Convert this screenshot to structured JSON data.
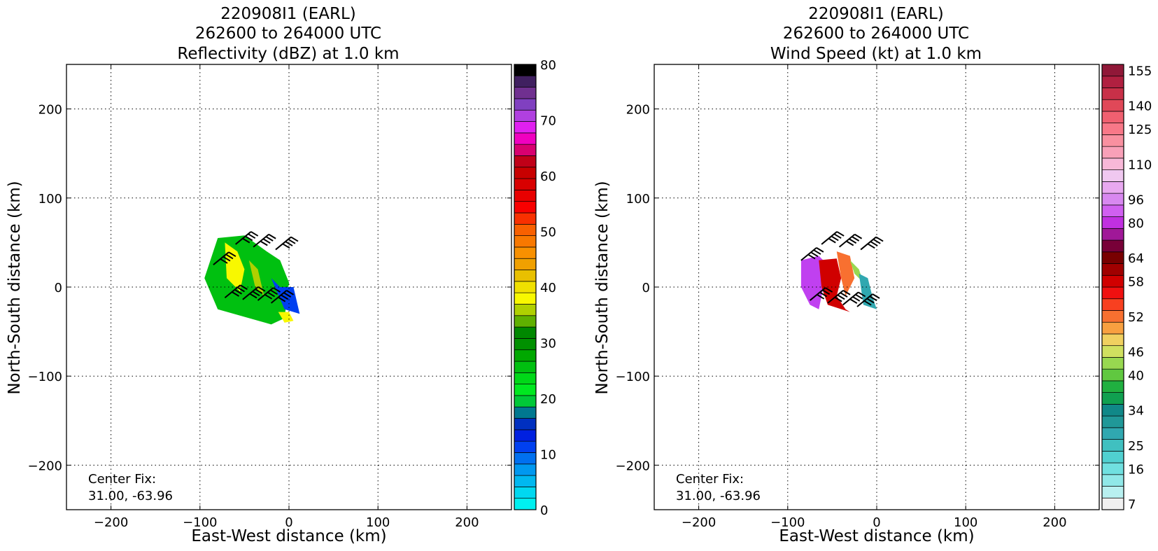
{
  "chart_data": [
    {
      "type": "heatmap",
      "title_lines": [
        "220908I1 (EARL)",
        "262600 to 264000 UTC",
        "Reflectivity (dBZ) at 1.0 km"
      ],
      "xlabel": "East-West distance (km)",
      "ylabel": "North-South distance (km)",
      "xlim": [
        -250,
        250
      ],
      "ylim": [
        -250,
        250
      ],
      "xticks": [
        -200,
        -100,
        0,
        100,
        200
      ],
      "yticks": [
        -200,
        -100,
        0,
        100,
        200
      ],
      "grid": true,
      "center_fix_label": "Center Fix:",
      "center_fix_value": "31.00, -63.96",
      "colorbar": {
        "range": [
          0,
          80
        ],
        "ticks": [
          "0",
          "10",
          "20",
          "30",
          "40",
          "50",
          "60",
          "70",
          "80"
        ],
        "colors": [
          "#00f0f0",
          "#00d8f0",
          "#00b8f0",
          "#0098f0",
          "#0070f0",
          "#0040f0",
          "#0020e0",
          "#0030c0",
          "#007890",
          "#00c838",
          "#00e820",
          "#00d818",
          "#00c010",
          "#00a800",
          "#009000",
          "#008800",
          "#60b000",
          "#b0d000",
          "#f8f800",
          "#f0e000",
          "#e8c000",
          "#f0a000",
          "#f89000",
          "#f87800",
          "#f86000",
          "#f83000",
          "#f80000",
          "#e80000",
          "#d80000",
          "#c80000",
          "#c00018",
          "#d80070",
          "#f000c0",
          "#e020f0",
          "#b040e0",
          "#8040c0",
          "#703090",
          "#402060",
          "#000000"
        ]
      },
      "data_regions": [
        {
          "x": [
            -80,
            -50,
            -25,
            -10,
            0,
            -5,
            -20,
            -55,
            -80,
            -95
          ],
          "y": [
            55,
            58,
            40,
            30,
            5,
            -35,
            -42,
            -32,
            -25,
            10
          ],
          "color": "#00c010"
        },
        {
          "x": [
            -72,
            -58,
            -50,
            -55,
            -70
          ],
          "y": [
            50,
            40,
            20,
            -5,
            10
          ],
          "color": "#f8f800"
        },
        {
          "x": [
            -45,
            -35,
            -28,
            -38
          ],
          "y": [
            30,
            20,
            -10,
            0
          ],
          "color": "#b0d000"
        },
        {
          "x": [
            -20,
            -10,
            5,
            12,
            -5
          ],
          "y": [
            10,
            0,
            0,
            -30,
            -25
          ],
          "color": "#0040f0"
        },
        {
          "x": [
            -12,
            0,
            5,
            -5
          ],
          "y": [
            -28,
            -28,
            -38,
            -40
          ],
          "color": "#f8f800"
        }
      ],
      "wind_barbs": [
        {
          "x": -85,
          "y": 25
        },
        {
          "x": -60,
          "y": 48
        },
        {
          "x": -40,
          "y": 45
        },
        {
          "x": -15,
          "y": 42
        },
        {
          "x": -72,
          "y": -12
        },
        {
          "x": -52,
          "y": -14
        },
        {
          "x": -35,
          "y": -15
        },
        {
          "x": -20,
          "y": -18
        }
      ]
    },
    {
      "type": "heatmap",
      "title_lines": [
        "220908I1 (EARL)",
        "262600 to 264000 UTC",
        "Wind Speed (kt) at 1.0 km"
      ],
      "xlabel": "East-West distance (km)",
      "ylabel": "North-South distance (km)",
      "xlim": [
        -250,
        250
      ],
      "ylim": [
        -250,
        250
      ],
      "xticks": [
        -200,
        -100,
        0,
        100,
        200
      ],
      "yticks": [
        -200,
        -100,
        0,
        100,
        200
      ],
      "grid": true,
      "center_fix_label": "Center Fix:",
      "center_fix_value": "31.00, -63.96",
      "colorbar": {
        "ticks": [
          "7",
          "16",
          "25",
          "34",
          "40",
          "46",
          "52",
          "58",
          "64",
          "80",
          "96",
          "110",
          "125",
          "140",
          "155"
        ],
        "colors": [
          "#f0f0f0",
          "#b8f0f0",
          "#90e8e8",
          "#70e0e0",
          "#50d0d0",
          "#40c0c0",
          "#30a8b0",
          "#209898",
          "#108888",
          "#10a050",
          "#20b040",
          "#60c840",
          "#98d850",
          "#d0e060",
          "#f0d060",
          "#f8a040",
          "#f87030",
          "#f84020",
          "#f01010",
          "#d00000",
          "#a00000",
          "#780000",
          "#780038",
          "#a01898",
          "#c030e0",
          "#d060f0",
          "#d888f0",
          "#e8a8f0",
          "#f0c8f0",
          "#f8b8d8",
          "#f8a0b8",
          "#f890a0",
          "#f87888",
          "#f06070",
          "#e04858",
          "#c83048",
          "#b02040",
          "#901838"
        ]
      },
      "data_regions": [
        {
          "x": [
            -85,
            -65,
            -55,
            -60,
            -65,
            -75,
            -85
          ],
          "y": [
            30,
            35,
            25,
            0,
            -25,
            -20,
            0
          ],
          "color": "#c040f0"
        },
        {
          "x": [
            -65,
            -45,
            -40,
            -45,
            -35,
            -30,
            -55,
            -62
          ],
          "y": [
            30,
            32,
            10,
            -10,
            -25,
            -28,
            -20,
            0
          ],
          "color": "#d00000"
        },
        {
          "x": [
            -45,
            -30,
            -25,
            -35,
            -40
          ],
          "y": [
            40,
            35,
            10,
            -10,
            10
          ],
          "color": "#f87030"
        },
        {
          "x": [
            -30,
            -20,
            -15,
            -25
          ],
          "y": [
            30,
            20,
            5,
            15
          ],
          "color": "#98d850"
        },
        {
          "x": [
            -20,
            -10,
            -5,
            0,
            -15
          ],
          "y": [
            15,
            10,
            -10,
            -25,
            -20
          ],
          "color": "#30a8b0"
        }
      ],
      "wind_barbs": [
        {
          "x": -85,
          "y": 30
        },
        {
          "x": -62,
          "y": 48
        },
        {
          "x": -42,
          "y": 45
        },
        {
          "x": -18,
          "y": 42
        },
        {
          "x": -75,
          "y": -15
        },
        {
          "x": -55,
          "y": -18
        },
        {
          "x": -38,
          "y": -20
        },
        {
          "x": -22,
          "y": -22
        }
      ]
    }
  ]
}
